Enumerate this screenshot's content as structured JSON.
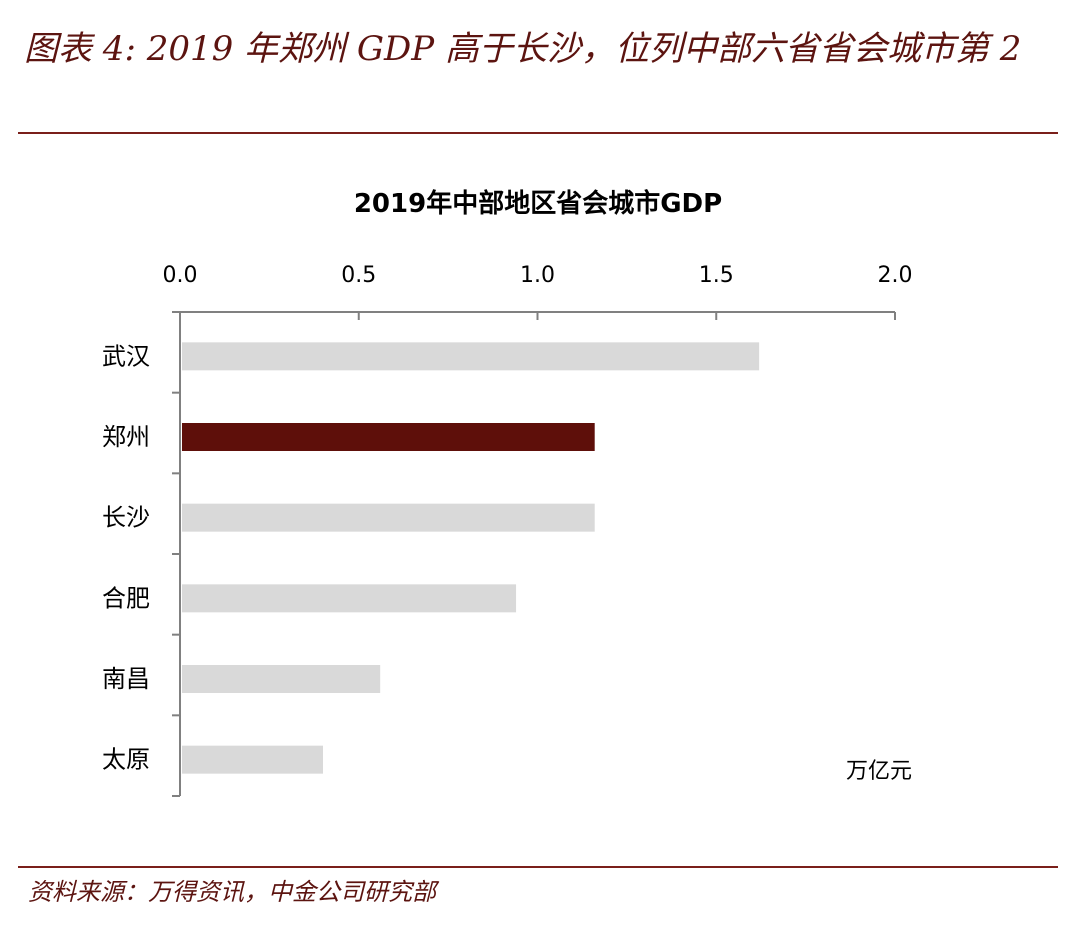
{
  "figure": {
    "title": "图表 4: 2019 年郑州 GDP 高于长沙，位列中部六省省会城市第 2",
    "source": "资料来源：万得资讯，中金公司研究部"
  },
  "colors": {
    "accent": "#5c1410",
    "rule": "#7a1f1a",
    "highlight_bar": "#5e0f0a",
    "default_bar": "#d9d9d9",
    "axis": "#808080"
  },
  "chart_data": {
    "type": "bar",
    "orientation": "horizontal",
    "title": "2019年中部地区省会城市GDP",
    "categories": [
      "武汉",
      "郑州",
      "长沙",
      "合肥",
      "南昌",
      "太原"
    ],
    "values": [
      1.62,
      1.16,
      1.16,
      0.94,
      0.56,
      0.4
    ],
    "highlight": "郑州",
    "xlim": [
      0,
      2.0
    ],
    "xticks": [
      0.0,
      0.5,
      1.0,
      1.5,
      2.0
    ],
    "xtick_labels": [
      "0.0",
      "0.5",
      "1.0",
      "1.5",
      "2.0"
    ],
    "x_axis_position": "top",
    "unit_label": "万亿元",
    "grid": false
  }
}
